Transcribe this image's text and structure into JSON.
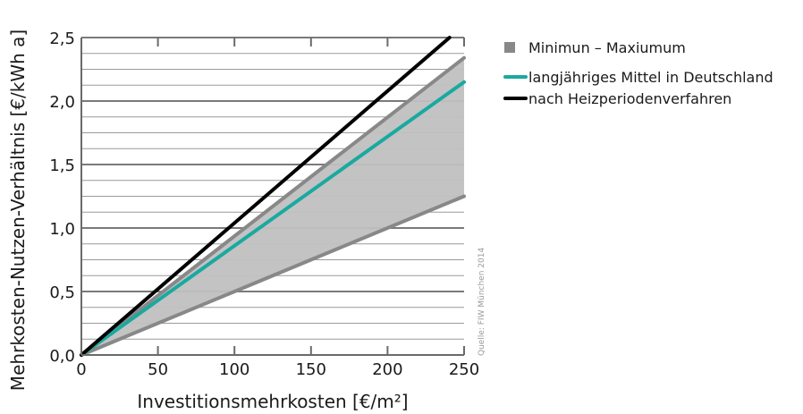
{
  "chart_data": {
    "type": "line",
    "xlabel": "Investitionsmehrkosten [€/m²]",
    "ylabel": "Mehrkosten-Nutzen-Verhältnis [€/kWh a]",
    "xlim": [
      0,
      250
    ],
    "ylim": [
      0,
      2.5
    ],
    "x_ticks": [
      "0",
      "50",
      "100",
      "150",
      "200",
      "250"
    ],
    "y_ticks": [
      "0,0",
      "0,5",
      "1,0",
      "1,5",
      "2,0",
      "2,5"
    ],
    "grid": true,
    "legend_position": "right",
    "band": {
      "name": "Minimun – Maxiumum",
      "color": "#888888",
      "fill": "#c0c0c0",
      "min": [
        {
          "x": 0,
          "y": 0
        },
        {
          "x": 250,
          "y": 1.25
        }
      ],
      "max": [
        {
          "x": 0,
          "y": 0
        },
        {
          "x": 250,
          "y": 2.34
        }
      ]
    },
    "series": [
      {
        "name": "langjähriges Mittel in Deutschland",
        "color": "#1aa9a0",
        "points": [
          {
            "x": 0,
            "y": 0
          },
          {
            "x": 250,
            "y": 2.15
          }
        ]
      },
      {
        "name": "nach Heizperiodenverfahren",
        "color": "#000000",
        "points": [
          {
            "x": 0,
            "y": 0
          },
          {
            "x": 240.5,
            "y": 2.5
          }
        ]
      }
    ],
    "source_note": "Quelle: FIW München 2014"
  }
}
